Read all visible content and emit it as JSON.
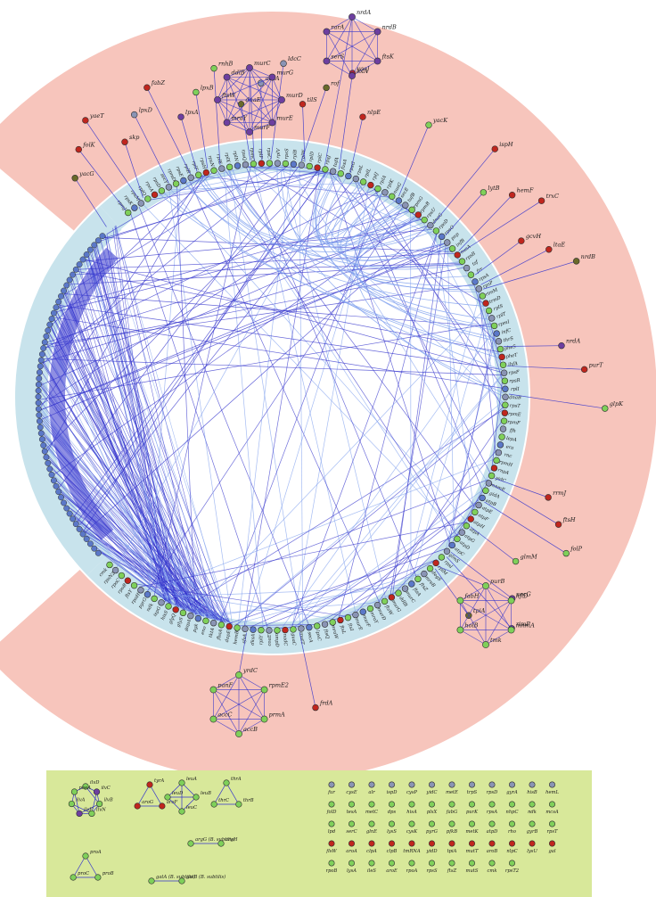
{
  "colors": {
    "outer_ring": "#f7c5bc",
    "inner_ring": "#c8e3ec",
    "legend_bg": "#d8e89a",
    "edge": "#3333cc",
    "edge_light": "#7fa0ee",
    "node_green": "#7fd05a",
    "node_blue": "#5b78c8",
    "node_gray": "#8a94b4",
    "node_red": "#c0261e",
    "node_purple": "#6d3fa0",
    "node_olive": "#6a6a2a"
  },
  "ring_labels": [
    "rpmJ",
    "rpsK",
    "rpsM",
    "rplQ",
    "rpoA",
    "rpsD",
    "secY",
    "rpmD",
    "rpsE",
    "rplR",
    "rplF",
    "rpsH",
    "rpsN",
    "rplE",
    "rplX",
    "rplN",
    "rpsQ",
    "rpmC",
    "rplP",
    "rpsC",
    "rplV",
    "rpsS",
    "rplB",
    "rplW",
    "rplD",
    "rplC",
    "rpsJ",
    "tufA",
    "fusA",
    "rpsG",
    "rpsL",
    "rplL",
    "rplJ",
    "rplA",
    "rplK",
    "nusG",
    "secE",
    "tufB",
    "rpmG",
    "rpmB",
    "rpsU",
    "dnaG",
    "rpoD",
    "rpsO",
    "pnp",
    "infB",
    "nusA",
    "rpsB",
    "tsf",
    "frr",
    "rpsA",
    "rpsP",
    "rimM",
    "trmD",
    "rplS",
    "rplT",
    "rpmI",
    "infC",
    "thrS",
    "pheS",
    "pheT",
    "ihfA",
    "rpsF",
    "rpsR",
    "rplI",
    "dnaB",
    "rpsT",
    "rpmE",
    "rpmF",
    "ffh",
    "lepA",
    "era",
    "rnc",
    "rpmH",
    "rnpA",
    "yidC",
    "mnmE",
    "gidA",
    "atpB",
    "atpE",
    "atpF",
    "atpH",
    "atpA",
    "atpG",
    "atpD",
    "atpC",
    "glmS",
    "rpsI",
    "rplM",
    "degS",
    "mreB",
    "ftsZ",
    "ftsA",
    "murC",
    "ddlB",
    "murG",
    "ftsW",
    "murD",
    "mraY",
    "murF",
    "murE",
    "ftsI",
    "ftsL",
    "mraW",
    "ftsQ",
    "lpxC",
    "secA",
    "mutT",
    "guaC",
    "nadC",
    "ampD",
    "coaE",
    "rplY",
    "dksA",
    "sfsA",
    "hemB",
    "dapE",
    "fbaA",
    "tktA",
    "eno",
    "pgk",
    "gapA",
    "glyS",
    "glyQ",
    "hisS",
    "ispG",
    "ndk",
    "pyrG",
    "rpoH",
    "ftsY",
    "rpoB",
    "rpoC",
    "rpsN2",
    "cmk"
  ],
  "outer_nodes": [
    {
      "label": "yacG",
      "color": "node_olive"
    },
    {
      "label": "folK",
      "color": "node_red"
    },
    {
      "label": "yaeT",
      "color": "node_red"
    },
    {
      "label": "skp",
      "color": "node_red"
    },
    {
      "label": "lpxD",
      "color": "node_gray"
    },
    {
      "label": "fabZ",
      "color": "node_red"
    },
    {
      "label": "lpxA",
      "color": "node_purple"
    },
    {
      "label": "lpxB",
      "color": "node_green"
    },
    {
      "label": "rnhB",
      "color": "node_green"
    },
    {
      "label": "dnaE",
      "color": "node_olive"
    },
    {
      "label": "accA",
      "color": "node_gray"
    },
    {
      "label": "ldcC",
      "color": "node_gray"
    },
    {
      "label": "tilS",
      "color": "node_red"
    },
    {
      "label": "rof",
      "color": "node_olive"
    },
    {
      "label": "yaeJ",
      "color": "node_red"
    },
    {
      "label": "nlpE",
      "color": "node_red"
    },
    {
      "label": "yacK",
      "color": "node_green"
    },
    {
      "label": "ispH",
      "color": "node_red"
    },
    {
      "label": "lytB",
      "color": "node_green"
    },
    {
      "label": "hemF",
      "color": "node_red"
    },
    {
      "label": "trxC",
      "color": "node_red"
    },
    {
      "label": "gcvH",
      "color": "node_red"
    },
    {
      "label": "ltaE",
      "color": "node_red"
    },
    {
      "label": "nrdB",
      "color": "node_olive"
    },
    {
      "label": "nrdA",
      "color": "node_purple"
    },
    {
      "label": "purT",
      "color": "node_red"
    },
    {
      "label": "glpK",
      "color": "node_green"
    },
    {
      "label": "rrmJ",
      "color": "node_red"
    },
    {
      "label": "ftsH",
      "color": "node_red"
    },
    {
      "label": "folP",
      "color": "node_green"
    },
    {
      "label": "glmM",
      "color": "node_green"
    },
    {
      "label": "secG",
      "color": "node_purple"
    },
    {
      "label": "rimP",
      "color": "node_purple"
    },
    {
      "label": "tpiA",
      "color": "node_olive"
    },
    {
      "label": "frdA",
      "color": "node_red"
    }
  ],
  "clusters": [
    {
      "labels": [
        "murC",
        "murG",
        "murD",
        "murE",
        "murF",
        "mraY",
        "ftsW",
        "ddlB"
      ],
      "color": "node_purple"
    },
    {
      "labels": [
        "nrdA",
        "nrdB",
        "ftsK",
        "lolA",
        "serS",
        "rarA"
      ],
      "color": "node_purple"
    },
    {
      "labels": [
        "purB",
        "hflD",
        "mnmA",
        "tmk",
        "holB",
        "fabH"
      ],
      "color": "node_green"
    },
    {
      "labels": [
        "yrdC",
        "rpmE2",
        "prmA",
        "accB",
        "accC",
        "panF"
      ],
      "color": "node_green"
    }
  ],
  "legend": {
    "group_a": [
      {
        "labels": [
          "ilvD",
          "ilvC",
          "ilvB",
          "ilvN",
          "ilvE",
          "ilvA",
          "pheA"
        ]
      },
      {
        "labels": [
          "tyrA",
          "aroF",
          "aroG"
        ]
      },
      {
        "labels": [
          "leuA",
          "leuB",
          "leuC",
          "leuD"
        ]
      },
      {
        "labels": [
          "thrA",
          "thrB",
          "thrC"
        ]
      },
      {
        "labels": [
          "proA",
          "proB",
          "proC"
        ]
      },
      {
        "labels": [
          "argG (B. subtilis)",
          "argH"
        ]
      },
      {
        "labels": [
          "gatA (B. subtilis)",
          "gatB (B. subtilis)"
        ]
      }
    ],
    "singletons": [
      "fur",
      "cysE",
      "alr",
      "ispD",
      "cysP",
      "yidC",
      "metE",
      "trpS",
      "rpsD",
      "gyrA",
      "hisB",
      "hemL",
      "folD",
      "tesA",
      "metC",
      "dps",
      "hisA",
      "plsX",
      "fabG",
      "purK",
      "rpsA",
      "nhpC",
      "ndk",
      "mcsA",
      "lpd",
      "serC",
      "glnE",
      "lysS",
      "cysK",
      "pyrG",
      "pfkB",
      "metK",
      "atpD",
      "rho",
      "gyrB",
      "rpsT",
      "flsW",
      "aroA",
      "clpA",
      "clpB",
      "tmRNA",
      "yidD",
      "tpiA",
      "mutT",
      "aroB",
      "nlpC",
      "lysU",
      "gal",
      "rpoB",
      "lysA",
      "ileS",
      "aroE",
      "rpoA",
      "rpsS",
      "ftsZ",
      "mutS",
      "cmk",
      "rpsT2"
    ]
  }
}
